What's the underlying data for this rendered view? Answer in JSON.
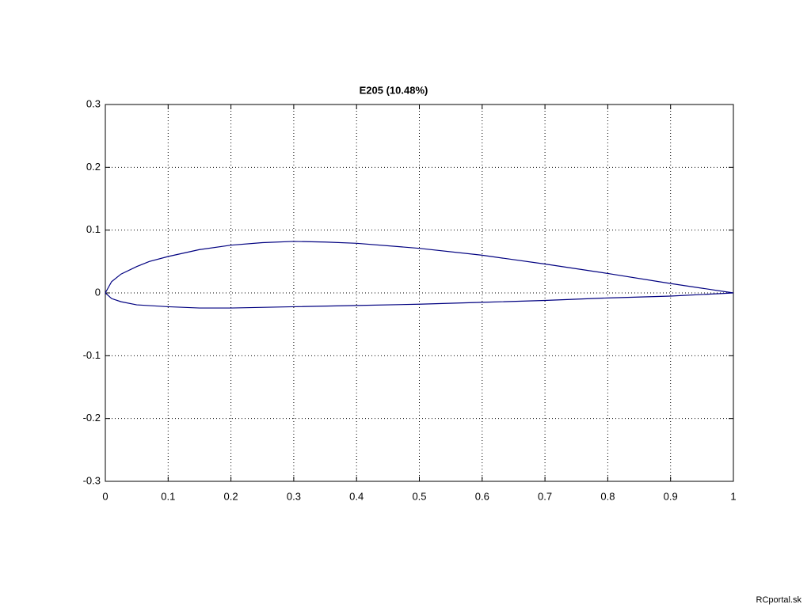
{
  "chart_data": {
    "type": "line",
    "title": "E205  (10.48%)",
    "xlim": [
      0,
      1
    ],
    "xticks": [
      0,
      0.1,
      0.2,
      0.3,
      0.4,
      0.5,
      0.6,
      0.7,
      0.8,
      0.9,
      1
    ],
    "ylim": [
      -0.3,
      0.3
    ],
    "yticks": [
      -0.3,
      -0.2,
      -0.1,
      0,
      0.1,
      0.2,
      0.3
    ],
    "grid": true,
    "series": [
      {
        "color": "#000080",
        "x": [
          1,
          0.9,
          0.8,
          0.7,
          0.6,
          0.5,
          0.4,
          0.35,
          0.3,
          0.25,
          0.2,
          0.15,
          0.1,
          0.07,
          0.05,
          0.025,
          0.01,
          0
        ],
        "values": [
          0,
          0.015,
          0.031,
          0.046,
          0.06,
          0.071,
          0.079,
          0.081,
          0.082,
          0.08,
          0.076,
          0.069,
          0.058,
          0.05,
          0.042,
          0.03,
          0.018,
          0
        ]
      },
      {
        "color": "#000080",
        "x": [
          0,
          0.01,
          0.025,
          0.05,
          0.1,
          0.15,
          0.2,
          0.3,
          0.4,
          0.5,
          0.6,
          0.7,
          0.8,
          0.9,
          1
        ],
        "values": [
          0,
          -0.009,
          -0.014,
          -0.019,
          -0.022,
          -0.024,
          -0.024,
          -0.022,
          -0.02,
          -0.018,
          -0.015,
          -0.012,
          -0.008,
          -0.005,
          0
        ]
      }
    ]
  },
  "watermark": "RCportal.sk"
}
